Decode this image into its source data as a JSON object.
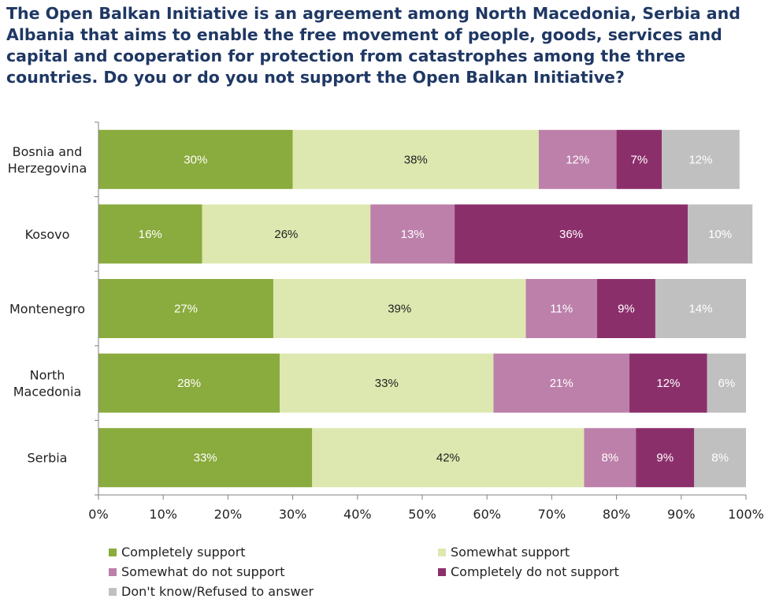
{
  "title": "The Open Balkan Initiative is an agreement among North Macedonia, Serbia and Albania that aims to enable the free movement of people, goods, services and capital and cooperation for protection from catastrophes among the three countries. Do you or do you not support the Open Balkan Initiative?",
  "chart_data": {
    "type": "bar",
    "orientation": "horizontal",
    "stacked": true,
    "categories": [
      [
        "Bosnia and",
        "Herzegovina"
      ],
      [
        "Kosovo"
      ],
      [
        "Montenegro"
      ],
      [
        "North",
        "Macedonia"
      ],
      [
        "Serbia"
      ]
    ],
    "series": [
      {
        "name": "Completely support",
        "color": "#8aab3d",
        "label_color": "#ffffff",
        "values": [
          30,
          16,
          27,
          28,
          33
        ],
        "labels": [
          "30%",
          "16%",
          "27%",
          "28%",
          "33%"
        ]
      },
      {
        "name": "Somewhat support",
        "color": "#dde8b0",
        "label_color": "#222222",
        "values": [
          38,
          26,
          39,
          33,
          42
        ],
        "labels": [
          "38%",
          "26%",
          "39%",
          "33%",
          "42%"
        ]
      },
      {
        "name": "Somewhat do not support",
        "color": "#bc80aa",
        "label_color": "#ffffff",
        "values": [
          12,
          13,
          11,
          21,
          8
        ],
        "labels": [
          "12%",
          "13%",
          "11%",
          "21%",
          "8%"
        ]
      },
      {
        "name": "Completely do not support",
        "color": "#8b2f6b",
        "label_color": "#ffffff",
        "values": [
          7,
          36,
          9,
          12,
          9
        ],
        "labels": [
          "7%",
          "36%",
          "9%",
          "12%",
          "9%"
        ]
      },
      {
        "name": "Don't know/Refused to answer",
        "color": "#c0c0c0",
        "label_color": "#ffffff",
        "values": [
          12,
          10,
          14,
          6,
          8
        ],
        "labels": [
          "12%",
          "10%",
          "14%",
          "6%",
          "8%"
        ]
      }
    ],
    "xaxis": {
      "ticks": [
        0,
        10,
        20,
        30,
        40,
        50,
        60,
        70,
        80,
        90,
        100
      ],
      "tick_labels": [
        "0%",
        "10%",
        "20%",
        "30%",
        "40%",
        "50%",
        "60%",
        "70%",
        "80%",
        "90%",
        "100%"
      ],
      "range": [
        0,
        100
      ]
    },
    "grid": false,
    "legend_position": "bottom"
  }
}
